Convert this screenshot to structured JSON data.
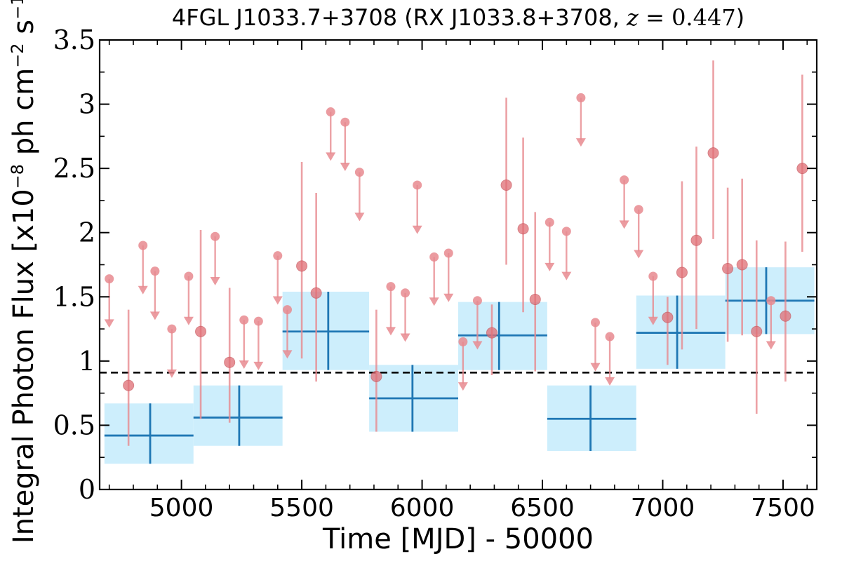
{
  "chart_data": {
    "type": "scatter",
    "title": {
      "prefix": "4FGL J1033.7+3708 (RX J1033.8+3708, ",
      "z_symbol": "z",
      "equals": " = ",
      "z_value": "0.447",
      "suffix": ")"
    },
    "xlabel": "Time [MJD] - 50000",
    "ylabel": {
      "prefix": "Integral Photon Flux [x10",
      "exp1": "−8",
      "middle": " ph cm",
      "exp2": "−2",
      "middle2": " s",
      "exp3": "−1",
      "suffix": "]"
    },
    "xlim": [
      4660,
      7640
    ],
    "ylim": [
      0,
      3.5
    ],
    "xticks": [
      {
        "value": 5000,
        "label": "5000"
      },
      {
        "value": 5500,
        "label": "5500"
      },
      {
        "value": 6000,
        "label": "6000"
      },
      {
        "value": 6500,
        "label": "6500"
      },
      {
        "value": 7000,
        "label": "7000"
      },
      {
        "value": 7500,
        "label": "7500"
      }
    ],
    "yticks": [
      {
        "value": 0,
        "label": "0"
      },
      {
        "value": 0.5,
        "label": "0.5"
      },
      {
        "value": 1,
        "label": "1"
      },
      {
        "value": 1.5,
        "label": "1.5"
      },
      {
        "value": 2,
        "label": "2"
      },
      {
        "value": 2.5,
        "label": "2.5"
      },
      {
        "value": 3,
        "label": "3"
      },
      {
        "value": 3.5,
        "label": "3.5"
      }
    ],
    "reference_line": {
      "y": 0.91,
      "style": "dashed"
    },
    "colors": {
      "points": "#e88a8f",
      "binned_fill": "#cdeefc",
      "binned_line": "#1f77b4",
      "reference": "#000000"
    },
    "series": [
      {
        "kind": "detections",
        "points": [
          {
            "x": 4780,
            "y": 0.81,
            "lo": 0.34,
            "hi": 1.4
          },
          {
            "x": 5080,
            "y": 1.23,
            "lo": 0.55,
            "hi": 2.02
          },
          {
            "x": 5200,
            "y": 0.99,
            "lo": 0.52,
            "hi": 1.57
          },
          {
            "x": 5500,
            "y": 1.74,
            "lo": 1.02,
            "hi": 2.55
          },
          {
            "x": 5560,
            "y": 1.53,
            "lo": 0.84,
            "hi": 2.31
          },
          {
            "x": 5810,
            "y": 0.88,
            "lo": 0.45,
            "hi": 1.4
          },
          {
            "x": 6290,
            "y": 1.22,
            "lo": 0.89,
            "hi": 1.44
          },
          {
            "x": 6350,
            "y": 2.37,
            "lo": 1.75,
            "hi": 3.05
          },
          {
            "x": 6420,
            "y": 2.03,
            "lo": 1.38,
            "hi": 2.74
          },
          {
            "x": 6470,
            "y": 1.48,
            "lo": 0.92,
            "hi": 2.16
          },
          {
            "x": 7020,
            "y": 1.34,
            "lo": 0.97,
            "hi": 1.5
          },
          {
            "x": 7080,
            "y": 1.69,
            "lo": 1.09,
            "hi": 2.4
          },
          {
            "x": 7140,
            "y": 1.94,
            "lo": 1.25,
            "hi": 2.67
          },
          {
            "x": 7210,
            "y": 2.62,
            "lo": 1.95,
            "hi": 3.34
          },
          {
            "x": 7270,
            "y": 1.72,
            "lo": 1.15,
            "hi": 2.35
          },
          {
            "x": 7330,
            "y": 1.75,
            "lo": 1.2,
            "hi": 2.42
          },
          {
            "x": 7390,
            "y": 1.23,
            "lo": 0.59,
            "hi": 1.94
          },
          {
            "x": 7510,
            "y": 1.35,
            "lo": 0.84,
            "hi": 1.93
          },
          {
            "x": 7580,
            "y": 2.5,
            "lo": 1.85,
            "hi": 3.23
          }
        ]
      },
      {
        "kind": "upper_limits",
        "points": [
          {
            "x": 4700,
            "y": 1.64
          },
          {
            "x": 4840,
            "y": 1.9
          },
          {
            "x": 4890,
            "y": 1.7
          },
          {
            "x": 4960,
            "y": 1.25
          },
          {
            "x": 5030,
            "y": 1.66
          },
          {
            "x": 5140,
            "y": 1.97
          },
          {
            "x": 5260,
            "y": 1.32
          },
          {
            "x": 5320,
            "y": 1.31
          },
          {
            "x": 5400,
            "y": 1.82
          },
          {
            "x": 5440,
            "y": 1.4
          },
          {
            "x": 5620,
            "y": 2.94
          },
          {
            "x": 5680,
            "y": 2.86
          },
          {
            "x": 5740,
            "y": 2.47
          },
          {
            "x": 5870,
            "y": 1.58
          },
          {
            "x": 5930,
            "y": 1.53
          },
          {
            "x": 5980,
            "y": 2.37
          },
          {
            "x": 6050,
            "y": 1.81
          },
          {
            "x": 6110,
            "y": 1.84
          },
          {
            "x": 6170,
            "y": 1.15
          },
          {
            "x": 6230,
            "y": 1.47
          },
          {
            "x": 6530,
            "y": 2.08
          },
          {
            "x": 6600,
            "y": 2.01
          },
          {
            "x": 6660,
            "y": 3.05
          },
          {
            "x": 6720,
            "y": 1.3
          },
          {
            "x": 6780,
            "y": 1.19
          },
          {
            "x": 6840,
            "y": 2.41
          },
          {
            "x": 6900,
            "y": 2.18
          },
          {
            "x": 6960,
            "y": 1.66
          },
          {
            "x": 7450,
            "y": 1.47
          }
        ]
      },
      {
        "kind": "binned",
        "bins": [
          {
            "x0": 4680,
            "x1": 5050,
            "xc": 4870,
            "y": 0.42,
            "lo": 0.2,
            "hi": 0.67
          },
          {
            "x0": 5050,
            "x1": 5420,
            "xc": 5240,
            "y": 0.56,
            "lo": 0.34,
            "hi": 0.81
          },
          {
            "x0": 5420,
            "x1": 5780,
            "xc": 5610,
            "y": 1.23,
            "lo": 0.93,
            "hi": 1.54
          },
          {
            "x0": 5780,
            "x1": 6150,
            "xc": 5960,
            "y": 0.71,
            "lo": 0.45,
            "hi": 0.97
          },
          {
            "x0": 6150,
            "x1": 6520,
            "xc": 6320,
            "y": 1.2,
            "lo": 0.93,
            "hi": 1.46
          },
          {
            "x0": 6520,
            "x1": 6890,
            "xc": 6700,
            "y": 0.55,
            "lo": 0.3,
            "hi": 0.81
          },
          {
            "x0": 6890,
            "x1": 7260,
            "xc": 7060,
            "y": 1.22,
            "lo": 0.94,
            "hi": 1.51
          },
          {
            "x0": 7260,
            "x1": 7630,
            "xc": 7430,
            "y": 1.47,
            "lo": 1.21,
            "hi": 1.73
          }
        ]
      }
    ]
  }
}
